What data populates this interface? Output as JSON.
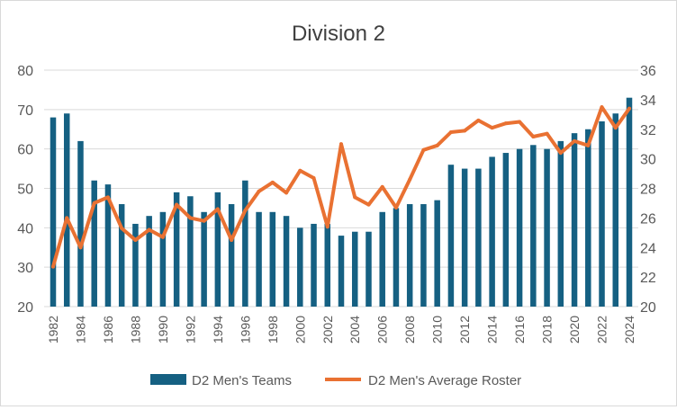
{
  "chart_data": {
    "type": "bar",
    "title": "Division 2",
    "x": [
      1982,
      1983,
      1984,
      1985,
      1986,
      1987,
      1988,
      1989,
      1990,
      1991,
      1992,
      1993,
      1994,
      1995,
      1996,
      1997,
      1998,
      1999,
      2000,
      2001,
      2002,
      2003,
      2004,
      2005,
      2006,
      2007,
      2008,
      2009,
      2010,
      2011,
      2012,
      2013,
      2014,
      2015,
      2016,
      2017,
      2018,
      2019,
      2020,
      2021,
      2022,
      2023,
      2024
    ],
    "x_tick_labels": [
      "1982",
      "1984",
      "1986",
      "1988",
      "1990",
      "1992",
      "1994",
      "1996",
      "1998",
      "2000",
      "2002",
      "2004",
      "2006",
      "2008",
      "2010",
      "2012",
      "2014",
      "2016",
      "2018",
      "2020",
      "2022",
      "2024"
    ],
    "y_left": {
      "ylim": [
        20,
        80
      ],
      "ticks": [
        "20",
        "30",
        "40",
        "50",
        "60",
        "70",
        "80"
      ]
    },
    "y_right": {
      "ylim": [
        20,
        36
      ],
      "ticks": [
        "20",
        "22",
        "24",
        "26",
        "28",
        "30",
        "32",
        "34",
        "36"
      ]
    },
    "grid": true,
    "legend_position": "bottom",
    "series": [
      {
        "name": "D2 Men's Teams",
        "type": "bar",
        "axis": "left",
        "color": "#156082",
        "values": [
          68,
          69,
          62,
          52,
          51,
          46,
          41,
          43,
          44,
          49,
          48,
          44,
          49,
          46,
          52,
          44,
          44,
          43,
          40,
          41,
          41,
          38,
          39,
          39,
          44,
          45,
          46,
          46,
          47,
          56,
          55,
          55,
          58,
          59,
          60,
          61,
          60,
          62,
          64,
          65,
          67,
          69,
          73
        ]
      },
      {
        "name": "D2 Men's Average Roster",
        "type": "line",
        "axis": "right",
        "color": "#E97132",
        "values": [
          22.7,
          26.0,
          24.0,
          27.0,
          27.4,
          25.3,
          24.5,
          25.2,
          24.7,
          26.9,
          26.0,
          25.8,
          26.6,
          24.5,
          26.5,
          27.8,
          28.4,
          27.7,
          29.2,
          28.7,
          25.4,
          31.0,
          27.4,
          26.9,
          28.1,
          26.7,
          28.6,
          30.6,
          30.9,
          31.8,
          31.9,
          32.6,
          32.1,
          32.4,
          32.5,
          31.5,
          31.7,
          30.4,
          31.2,
          30.9,
          33.5,
          32.1,
          33.4
        ]
      }
    ]
  }
}
